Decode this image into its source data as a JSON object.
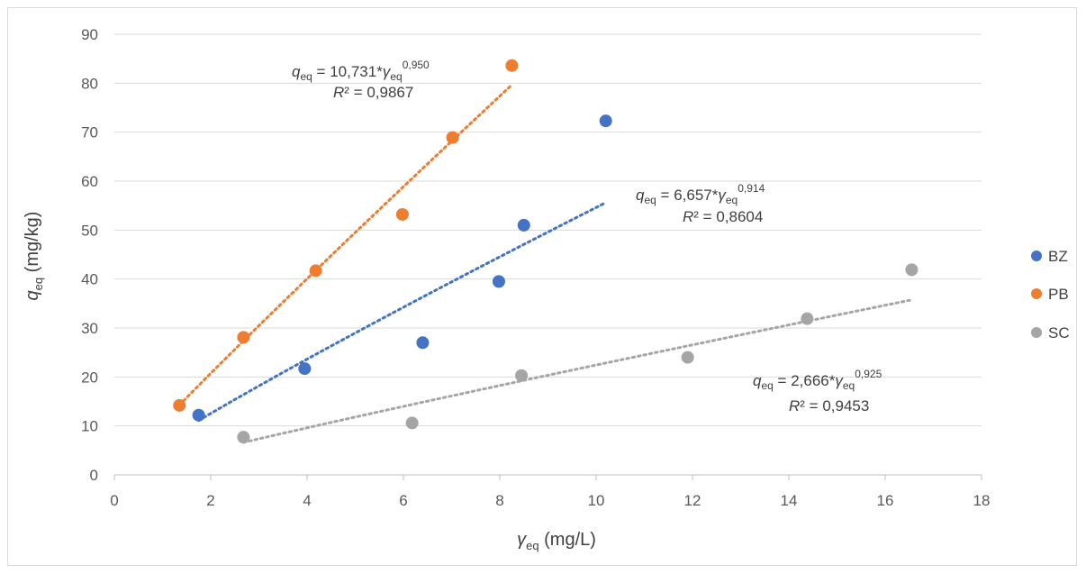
{
  "chart_data": {
    "type": "scatter",
    "xlabel": {
      "var": "γ",
      "sub": "eq",
      "unit": " (mg/L)"
    },
    "ylabel": {
      "var": "q",
      "sub": "eq",
      "unit": " (mg/kg)"
    },
    "xlim": [
      0,
      18
    ],
    "ylim": [
      0,
      90
    ],
    "xticks": [
      0,
      2,
      4,
      6,
      8,
      10,
      12,
      14,
      16,
      18
    ],
    "yticks": [
      0,
      10,
      20,
      30,
      40,
      50,
      60,
      70,
      80,
      90
    ],
    "grid": "horizontal",
    "legend_position": "right",
    "series": [
      {
        "name": "BZ",
        "color": "#4472C4",
        "points": [
          [
            1.75,
            12.2
          ],
          [
            3.95,
            21.7
          ],
          [
            6.4,
            27.0
          ],
          [
            7.98,
            39.5
          ],
          [
            8.5,
            51.0
          ],
          [
            10.2,
            72.3
          ]
        ],
        "trend": {
          "type": "power",
          "a": 6.657,
          "b": 0.914,
          "x_range": [
            1.75,
            10.2
          ]
        },
        "equation": {
          "lhs_var": "q",
          "lhs_sub": "eq",
          "rhs": " = 6,657*",
          "var": "γ",
          "sub": "eq",
          "exp": "0,914"
        },
        "r2": {
          "var": "R",
          "rest": "² = 0,8604"
        }
      },
      {
        "name": "PB",
        "color": "#ED7D31",
        "points": [
          [
            1.35,
            14.2
          ],
          [
            2.68,
            28.1
          ],
          [
            4.18,
            41.7
          ],
          [
            5.98,
            53.2
          ],
          [
            7.02,
            68.9
          ],
          [
            8.25,
            83.6
          ]
        ],
        "trend": {
          "type": "power",
          "a": 10.731,
          "b": 0.95,
          "x_range": [
            1.35,
            8.25
          ]
        },
        "equation": {
          "lhs_var": "q",
          "lhs_sub": "eq",
          "rhs": " = 10,731*",
          "var": "γ",
          "sub": "eq",
          "exp": "0,950"
        },
        "r2": {
          "var": "R",
          "rest": "² = 0,9867"
        }
      },
      {
        "name": "SC",
        "color": "#A5A5A5",
        "points": [
          [
            2.68,
            7.7
          ],
          [
            6.18,
            10.6
          ],
          [
            8.45,
            20.3
          ],
          [
            11.9,
            24.0
          ],
          [
            14.38,
            31.9
          ],
          [
            16.55,
            41.9
          ]
        ],
        "trend": {
          "type": "power",
          "a": 2.666,
          "b": 0.925,
          "x_range": [
            2.68,
            16.55
          ]
        },
        "equation": {
          "lhs_var": "q",
          "lhs_sub": "eq",
          "rhs": " = 2,666*",
          "var": "γ",
          "sub": "eq",
          "exp": "0,925"
        },
        "r2": {
          "var": "R",
          "rest": "² = 0,9453"
        }
      }
    ]
  }
}
